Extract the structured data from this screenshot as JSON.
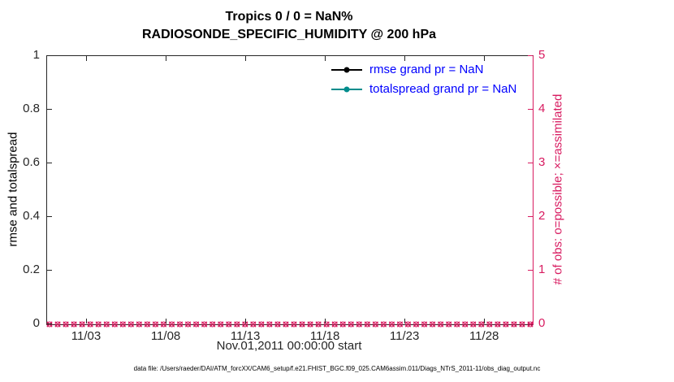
{
  "chart_data": {
    "type": "line",
    "title": "Tropics 0 / 0 = NaN%",
    "subtitle": "RADIOSONDE_SPECIFIC_HUMIDITY @ 200 hPa",
    "xlabel": "Nov.01,2011 00:00:00 start",
    "ylabel_left": "rmse and totalspread",
    "ylabel_right": "# of obs: o=possible; ×=assimilated",
    "ylim_left": [
      0,
      1
    ],
    "yticks_left": [
      "0",
      "0.2",
      "0.4",
      "0.6",
      "0.8",
      "1"
    ],
    "ylim_right": [
      0,
      5
    ],
    "yticks_right": [
      "0",
      "1",
      "2",
      "3",
      "4",
      "5"
    ],
    "xlim_days": [
      0.5,
      31
    ],
    "xtick_days": [
      3,
      8,
      13,
      18,
      23,
      28
    ],
    "xtick_labels": [
      "11/03",
      "11/08",
      "11/13",
      "11/18",
      "11/23",
      "11/28"
    ],
    "grid": false,
    "legend_position": "upper-right-inside, no box",
    "series": [
      {
        "name": "rmse",
        "legend": "rmse grand pr = NaN",
        "color": "#000000",
        "values": "NaN"
      },
      {
        "name": "totalspread",
        "legend": "totalspread grand pr = NaN",
        "color": "#008c8c",
        "values": "NaN"
      },
      {
        "name": "obs_possible",
        "marker": "o",
        "axis": "right",
        "value": 0,
        "count": 60
      },
      {
        "name": "obs_assimilated",
        "marker": "x",
        "axis": "right",
        "value": 0,
        "count": 60
      }
    ],
    "colors": {
      "obs": "#d81b60",
      "axis": "#262626",
      "legend_text": "#0000ff",
      "rmse": "#000000",
      "totalspread": "#008c8c"
    },
    "caption": "data file: /Users/raeder/DAI/ATM_forcXX/CAM6_setup/f.e21.FHIST_BGC.f09_025.CAM6assim.011/Diags_NTrS_2011-11/obs_diag_output.nc"
  }
}
